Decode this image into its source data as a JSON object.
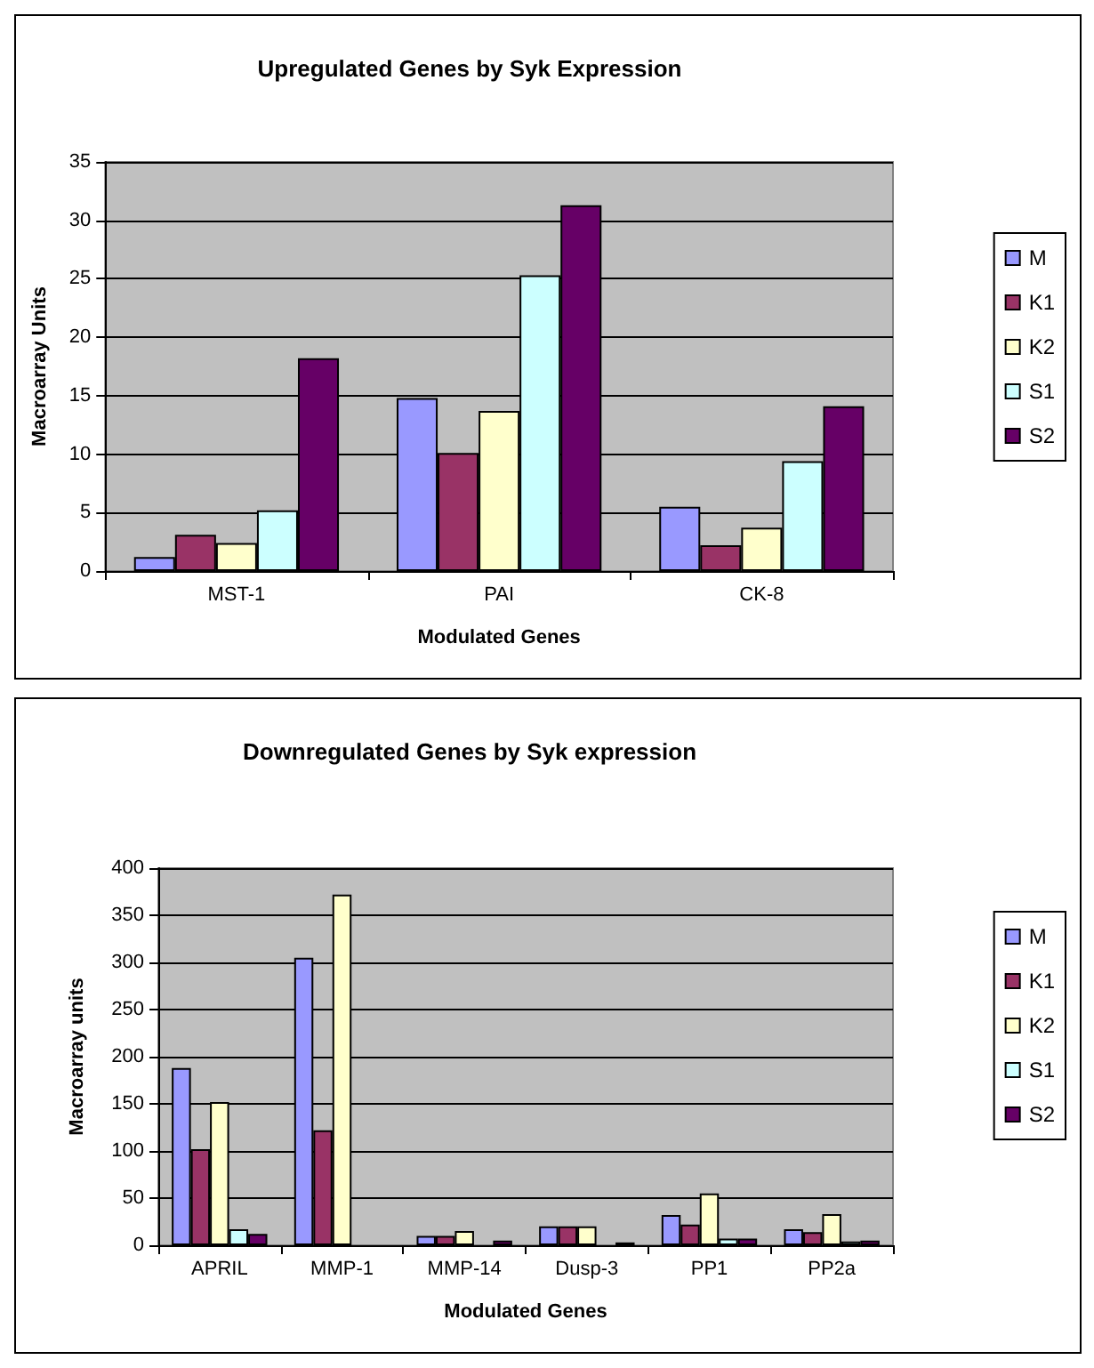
{
  "chart_data": [
    {
      "type": "bar",
      "title": "Upregulated Genes by Syk Expression",
      "xlabel": "Modulated Genes",
      "ylabel": "Macroarray Units",
      "categories": [
        "MST-1",
        "PAI",
        "CK-8"
      ],
      "ylim": [
        0,
        35
      ],
      "yticks": [
        0,
        5,
        10,
        15,
        20,
        25,
        30,
        35
      ],
      "grid": "y",
      "legend": "right",
      "series": [
        {
          "name": "M",
          "color": "#9999ff",
          "values": [
            1.2,
            14.8,
            5.5
          ]
        },
        {
          "name": "K1",
          "color": "#993366",
          "values": [
            3.1,
            10.1,
            2.2
          ]
        },
        {
          "name": "K2",
          "color": "#ffffcc",
          "values": [
            2.4,
            13.7,
            3.7
          ]
        },
        {
          "name": "S1",
          "color": "#ccffff",
          "values": [
            5.2,
            25.3,
            9.4
          ]
        },
        {
          "name": "S2",
          "color": "#660066",
          "values": [
            18.2,
            31.3,
            14.1
          ]
        }
      ]
    },
    {
      "type": "bar",
      "title": "Downregulated Genes by Syk expression",
      "xlabel": "Modulated Genes",
      "ylabel": "Macroarray units",
      "categories": [
        "APRIL",
        "MMP-1",
        "MMP-14",
        "Dusp-3",
        "PP1",
        "PP2a"
      ],
      "ylim": [
        0,
        400
      ],
      "yticks": [
        0,
        50,
        100,
        150,
        200,
        250,
        300,
        350,
        400
      ],
      "grid": "y",
      "legend": "right",
      "series": [
        {
          "name": "M",
          "color": "#9999ff",
          "values": [
            188,
            305,
            10,
            20,
            32,
            17
          ]
        },
        {
          "name": "K1",
          "color": "#993366",
          "values": [
            102,
            122,
            10,
            20,
            22,
            14
          ]
        },
        {
          "name": "K2",
          "color": "#ffffcc",
          "values": [
            152,
            372,
            15,
            20,
            55,
            33
          ]
        },
        {
          "name": "S1",
          "color": "#ccffff",
          "values": [
            17,
            null,
            null,
            null,
            7,
            4
          ]
        },
        {
          "name": "S2",
          "color": "#660066",
          "values": [
            12,
            null,
            5,
            3,
            7,
            5
          ]
        }
      ]
    }
  ]
}
